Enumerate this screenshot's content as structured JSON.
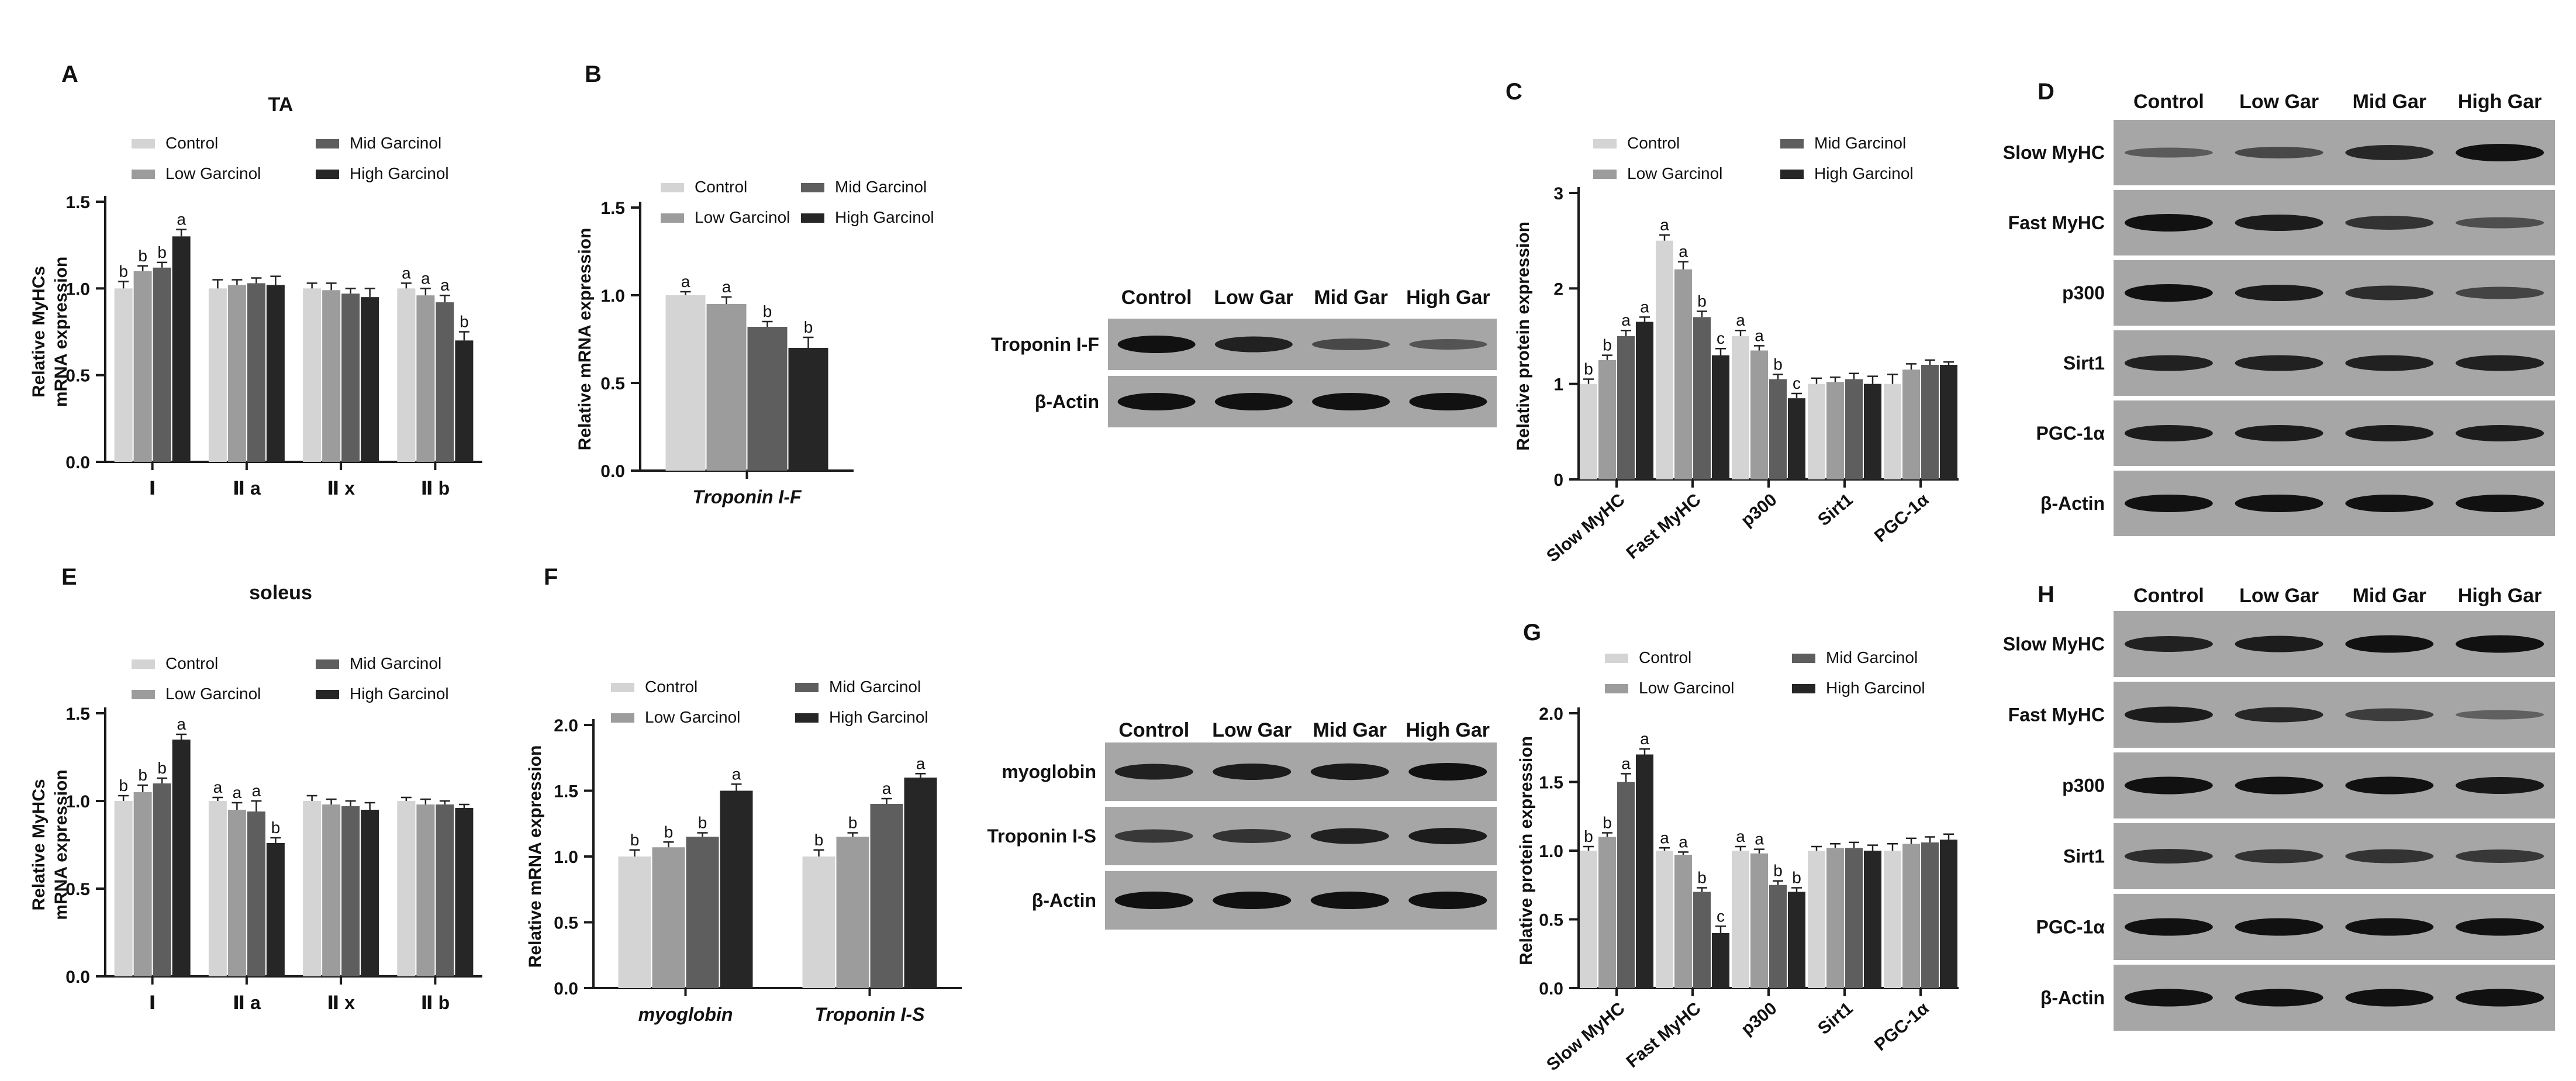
{
  "colors": {
    "control": "#d4d4d4",
    "low": "#9c9c9c",
    "mid": "#5e5e5e",
    "high": "#262626",
    "axis": "#1a1a1a",
    "blot_bg": "#a6a6a6",
    "blot_band": "#111111"
  },
  "panel_letters": [
    "A",
    "B",
    "C",
    "D",
    "E",
    "F",
    "G",
    "H"
  ],
  "blot_lanes": [
    "Control",
    "Low Gar",
    "Mid Gar",
    "High Gar"
  ],
  "chart_data": [
    {
      "id": "A",
      "type": "bar",
      "title": "TA",
      "ylabel": [
        "Relative  MyHCs",
        "mRNA expression"
      ],
      "xlabel": "",
      "ylim": [
        0,
        1.5
      ],
      "yticks": [
        "0.0",
        "0.5",
        "1.0",
        "1.5"
      ],
      "categories": [
        "Ⅰ",
        "Ⅱ a",
        "Ⅱ x",
        "Ⅱ b"
      ],
      "legend": [
        "Control",
        "Low Garcinol",
        "Mid Garcinol",
        "High Garcinol"
      ],
      "series": [
        {
          "name": "Control",
          "values": [
            1.0,
            1.0,
            1.0,
            1.0
          ],
          "err": [
            0.04,
            0.05,
            0.03,
            0.03
          ],
          "labels": [
            "b",
            "",
            "",
            "a"
          ]
        },
        {
          "name": "Low Garcinol",
          "values": [
            1.1,
            1.02,
            0.99,
            0.96
          ],
          "err": [
            0.03,
            0.03,
            0.04,
            0.04
          ],
          "labels": [
            "b",
            "",
            "",
            "a"
          ]
        },
        {
          "name": "Mid Garcinol",
          "values": [
            1.12,
            1.03,
            0.97,
            0.92
          ],
          "err": [
            0.03,
            0.03,
            0.03,
            0.04
          ],
          "labels": [
            "b",
            "",
            "",
            "a"
          ]
        },
        {
          "name": "High Garcinol",
          "values": [
            1.3,
            1.02,
            0.95,
            0.7
          ],
          "err": [
            0.04,
            0.05,
            0.05,
            0.05
          ],
          "labels": [
            "a",
            "",
            "",
            "b"
          ]
        }
      ]
    },
    {
      "id": "B",
      "type": "bar",
      "title": "",
      "ylabel": [
        "Relative mRNA expression"
      ],
      "xlabel": "Troponin I-F",
      "ylim": [
        0,
        1.5
      ],
      "yticks": [
        "0.0",
        "0.5",
        "1.0",
        "1.5"
      ],
      "categories": [
        "Troponin I-F"
      ],
      "legend": [
        "Control",
        "Low Garcinol",
        "Mid Garcinol",
        "High Garcinol"
      ],
      "series": [
        {
          "name": "Control",
          "values": [
            1.0
          ],
          "err": [
            0.02
          ],
          "labels": [
            "a"
          ]
        },
        {
          "name": "Low Garcinol",
          "values": [
            0.95
          ],
          "err": [
            0.04
          ],
          "labels": [
            "a"
          ]
        },
        {
          "name": "Mid Garcinol",
          "values": [
            0.82
          ],
          "err": [
            0.03
          ],
          "labels": [
            "b"
          ]
        },
        {
          "name": "High Garcinol",
          "values": [
            0.7
          ],
          "err": [
            0.06
          ],
          "labels": [
            "b"
          ]
        }
      ]
    },
    {
      "id": "C",
      "type": "bar",
      "title": "",
      "ylabel": [
        "Relative protein expression"
      ],
      "xlabel": "",
      "ylim": [
        0,
        3
      ],
      "yticks": [
        "0",
        "1",
        "2",
        "3"
      ],
      "categories": [
        "Slow MyHC",
        "Fast MyHC",
        "p300",
        "Sirt1",
        "PGC-1α"
      ],
      "legend": [
        "Control",
        "Low Garcinol",
        "Mid Garcinol",
        "High Garcinol"
      ],
      "series": [
        {
          "name": "Control",
          "values": [
            1.0,
            2.5,
            1.5,
            1.0,
            1.0
          ],
          "err": [
            0.05,
            0.06,
            0.06,
            0.06,
            0.1
          ],
          "labels": [
            "b",
            "a",
            "a",
            "",
            ""
          ]
        },
        {
          "name": "Low Garcinol",
          "values": [
            1.25,
            2.2,
            1.35,
            1.02,
            1.15
          ],
          "err": [
            0.05,
            0.08,
            0.05,
            0.05,
            0.06
          ],
          "labels": [
            "b",
            "a",
            "a",
            "",
            ""
          ]
        },
        {
          "name": "Mid Garcinol",
          "values": [
            1.5,
            1.7,
            1.05,
            1.05,
            1.2
          ],
          "err": [
            0.06,
            0.06,
            0.05,
            0.06,
            0.05
          ],
          "labels": [
            "a",
            "b",
            "b",
            "",
            ""
          ]
        },
        {
          "name": "High Garcinol",
          "values": [
            1.65,
            1.3,
            0.85,
            1.0,
            1.2
          ],
          "err": [
            0.05,
            0.07,
            0.05,
            0.08,
            0.03
          ],
          "labels": [
            "a",
            "c",
            "c",
            "",
            ""
          ]
        }
      ]
    },
    {
      "id": "E",
      "type": "bar",
      "title": "soleus",
      "ylabel": [
        "Relative  MyHCs",
        "mRNA expression"
      ],
      "xlabel": "",
      "ylim": [
        0,
        1.5
      ],
      "yticks": [
        "0.0",
        "0.5",
        "1.0",
        "1.5"
      ],
      "categories": [
        "Ⅰ",
        "Ⅱ a",
        "Ⅱ x",
        "Ⅱ b"
      ],
      "legend": [
        "Control",
        "Low Garcinol",
        "Mid Garcinol",
        "High Garcinol"
      ],
      "series": [
        {
          "name": "Control",
          "values": [
            1.0,
            1.0,
            1.0,
            1.0
          ],
          "err": [
            0.03,
            0.02,
            0.03,
            0.02
          ],
          "labels": [
            "b",
            "a",
            "",
            ""
          ]
        },
        {
          "name": "Low Garcinol",
          "values": [
            1.05,
            0.95,
            0.98,
            0.98
          ],
          "err": [
            0.04,
            0.04,
            0.03,
            0.03
          ],
          "labels": [
            "b",
            "a",
            "",
            ""
          ]
        },
        {
          "name": "Mid Garcinol",
          "values": [
            1.1,
            0.94,
            0.97,
            0.98
          ],
          "err": [
            0.03,
            0.06,
            0.03,
            0.02
          ],
          "labels": [
            "b",
            "a",
            "",
            ""
          ]
        },
        {
          "name": "High Garcinol",
          "values": [
            1.35,
            0.76,
            0.95,
            0.96
          ],
          "err": [
            0.03,
            0.03,
            0.04,
            0.02
          ],
          "labels": [
            "a",
            "b",
            "",
            ""
          ]
        }
      ]
    },
    {
      "id": "F",
      "type": "bar",
      "title": "",
      "ylabel": [
        "Relative mRNA expression"
      ],
      "xlabel": "",
      "ylim": [
        0,
        2
      ],
      "yticks": [
        "0.0",
        "0.5",
        "1.0",
        "1.5",
        "2.0"
      ],
      "categories": [
        "myoglobin",
        "Troponin I-S"
      ],
      "legend": [
        "Control",
        "Low Garcinol",
        "Mid Garcinol",
        "High Garcinol"
      ],
      "series": [
        {
          "name": "Control",
          "values": [
            1.0,
            1.0
          ],
          "err": [
            0.05,
            0.05
          ],
          "labels": [
            "b",
            "b"
          ]
        },
        {
          "name": "Low Garcinol",
          "values": [
            1.07,
            1.15
          ],
          "err": [
            0.04,
            0.03
          ],
          "labels": [
            "b",
            "b"
          ]
        },
        {
          "name": "Mid Garcinol",
          "values": [
            1.15,
            1.4
          ],
          "err": [
            0.03,
            0.04
          ],
          "labels": [
            "b",
            "a"
          ]
        },
        {
          "name": "High Garcinol",
          "values": [
            1.5,
            1.6
          ],
          "err": [
            0.05,
            0.03
          ],
          "labels": [
            "a",
            "a"
          ]
        }
      ]
    },
    {
      "id": "G",
      "type": "bar",
      "title": "",
      "ylabel": [
        "Relative protein expression"
      ],
      "xlabel": "",
      "ylim": [
        0,
        2
      ],
      "yticks": [
        "0.0",
        "0.5",
        "1.0",
        "1.5",
        "2.0"
      ],
      "categories": [
        "Slow MyHC",
        "Fast MyHC",
        "p300",
        "Sirt1",
        "PGC-1α"
      ],
      "legend": [
        "Control",
        "Low Garcinol",
        "Mid Garcinol",
        "High Garcinol"
      ],
      "series": [
        {
          "name": "Control",
          "values": [
            1.0,
            1.0,
            1.0,
            1.0,
            1.0
          ],
          "err": [
            0.03,
            0.02,
            0.03,
            0.03,
            0.05
          ],
          "labels": [
            "b",
            "a",
            "a",
            "",
            ""
          ]
        },
        {
          "name": "Low Garcinol",
          "values": [
            1.1,
            0.97,
            0.98,
            1.02,
            1.05
          ],
          "err": [
            0.03,
            0.02,
            0.03,
            0.03,
            0.04
          ],
          "labels": [
            "b",
            "a",
            "a",
            "",
            ""
          ]
        },
        {
          "name": "Mid Garcinol",
          "values": [
            1.5,
            0.7,
            0.75,
            1.02,
            1.06
          ],
          "err": [
            0.06,
            0.03,
            0.03,
            0.04,
            0.04
          ],
          "labels": [
            "a",
            "b",
            "b",
            "",
            ""
          ]
        },
        {
          "name": "High Garcinol",
          "values": [
            1.7,
            0.4,
            0.7,
            1.0,
            1.08
          ],
          "err": [
            0.04,
            0.05,
            0.03,
            0.04,
            0.04
          ],
          "labels": [
            "a",
            "c",
            "b",
            "",
            ""
          ]
        }
      ]
    }
  ],
  "blots": [
    {
      "id": "B-blot",
      "rows": [
        {
          "label": "Troponin I-F",
          "intensity": [
            1.0,
            0.85,
            0.5,
            0.4
          ]
        },
        {
          "label": "β-Actin",
          "intensity": [
            1.0,
            1.0,
            1.0,
            1.0
          ]
        }
      ]
    },
    {
      "id": "D",
      "rows": [
        {
          "label": "Slow MyHC",
          "intensity": [
            0.35,
            0.5,
            0.8,
            1.0
          ]
        },
        {
          "label": "Fast MyHC",
          "intensity": [
            1.0,
            0.9,
            0.7,
            0.45
          ]
        },
        {
          "label": "p300",
          "intensity": [
            1.0,
            0.9,
            0.75,
            0.55
          ]
        },
        {
          "label": "Sirt1",
          "intensity": [
            0.85,
            0.85,
            0.85,
            0.85
          ]
        },
        {
          "label": "PGC-1α",
          "intensity": [
            0.9,
            0.9,
            0.9,
            0.9
          ]
        },
        {
          "label": "β-Actin",
          "intensity": [
            1.0,
            1.0,
            1.0,
            1.0
          ]
        }
      ]
    },
    {
      "id": "F-blot",
      "rows": [
        {
          "label": "myoglobin",
          "intensity": [
            0.85,
            0.9,
            0.92,
            1.0
          ]
        },
        {
          "label": "Troponin I-S",
          "intensity": [
            0.65,
            0.7,
            0.85,
            0.9
          ]
        },
        {
          "label": "β-Actin",
          "intensity": [
            1.0,
            1.0,
            1.0,
            1.0
          ]
        }
      ]
    },
    {
      "id": "H",
      "rows": [
        {
          "label": "Slow MyHC",
          "intensity": [
            0.85,
            0.9,
            1.0,
            1.0
          ]
        },
        {
          "label": "Fast MyHC",
          "intensity": [
            0.9,
            0.8,
            0.6,
            0.3
          ]
        },
        {
          "label": "p300",
          "intensity": [
            1.0,
            1.0,
            1.0,
            0.95
          ]
        },
        {
          "label": "Sirt1",
          "intensity": [
            0.75,
            0.7,
            0.7,
            0.65
          ]
        },
        {
          "label": "PGC-1α",
          "intensity": [
            1.0,
            1.0,
            1.0,
            1.0
          ]
        },
        {
          "label": "β-Actin",
          "intensity": [
            1.0,
            1.0,
            1.0,
            1.0
          ]
        }
      ]
    }
  ]
}
